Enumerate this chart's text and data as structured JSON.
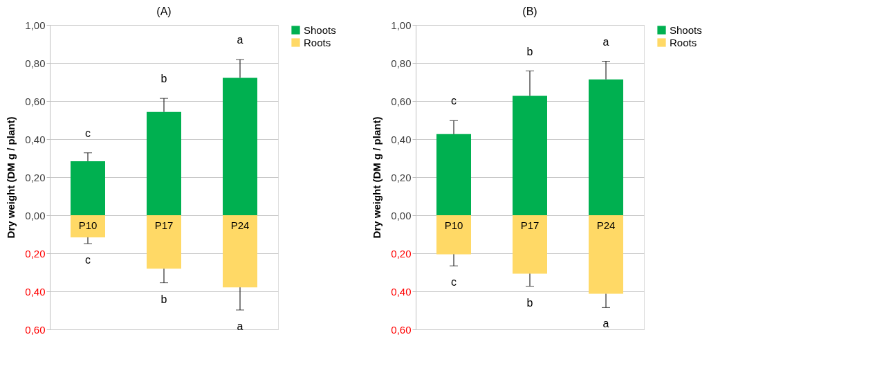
{
  "chart_data": [
    {
      "type": "bar",
      "title": "(A)",
      "ylabel": "Dry weight (DM g / plant)",
      "categories": [
        "P10",
        "P17",
        "P24"
      ],
      "stacked": true,
      "series": [
        {
          "name": "Shoots",
          "color": "#00b050",
          "values": [
            0.284,
            0.543,
            0.722
          ],
          "errors": [
            [
              0.284,
              0.328
            ],
            [
              0.543,
              0.614
            ],
            [
              0.722,
              0.818
            ]
          ]
        },
        {
          "name": "Roots",
          "color": "#ffd966",
          "values": [
            -0.116,
            -0.281,
            -0.379
          ],
          "errors": [
            [
              -0.149,
              -0.116
            ],
            [
              -0.355,
              -0.281
            ],
            [
              -0.498,
              -0.379
            ]
          ]
        }
      ],
      "ylim": [
        -0.6,
        1.0
      ],
      "yticks": [
        {
          "value": -0.6,
          "label": "0,60"
        },
        {
          "value": -0.4,
          "label": "0,40"
        },
        {
          "value": -0.2,
          "label": "0,20"
        },
        {
          "value": 0,
          "label": "0,00"
        },
        {
          "value": 0.2,
          "label": "0,20"
        },
        {
          "value": 0.4,
          "label": "0,40"
        },
        {
          "value": 0.6,
          "label": "0,60"
        },
        {
          "value": 0.8,
          "label": "0,80"
        },
        {
          "value": 1.0,
          "label": "1,00"
        }
      ],
      "grid": "y",
      "legend": "right",
      "annotations": [
        "c",
        "b",
        "a",
        "c",
        "b",
        "a"
      ]
    },
    {
      "type": "bar",
      "title": "(B)",
      "ylabel": "Dry weight (DM g / plant)",
      "categories": [
        "P10",
        "P17",
        "P24"
      ],
      "stacked": true,
      "series": [
        {
          "name": "Shoots",
          "color": "#00b050",
          "values": [
            0.426,
            0.627,
            0.714
          ],
          "errors": [
            [
              0.426,
              0.497
            ],
            [
              0.627,
              0.758
            ],
            [
              0.714,
              0.809
            ]
          ]
        },
        {
          "name": "Roots",
          "color": "#ffd966",
          "values": [
            -0.205,
            -0.307,
            -0.413
          ],
          "errors": [
            [
              -0.266,
              -0.205
            ],
            [
              -0.373,
              -0.307
            ],
            [
              -0.485,
              -0.413
            ]
          ]
        }
      ],
      "ylim": [
        -0.6,
        1.0
      ],
      "yticks": [
        {
          "value": -0.6,
          "label": "0,60"
        },
        {
          "value": -0.4,
          "label": "0,40"
        },
        {
          "value": -0.2,
          "label": "0,20"
        },
        {
          "value": 0,
          "label": "0,00"
        },
        {
          "value": 0.2,
          "label": "0,20"
        },
        {
          "value": 0.4,
          "label": "0,40"
        },
        {
          "value": 0.6,
          "label": "0,60"
        },
        {
          "value": 0.8,
          "label": "0,80"
        },
        {
          "value": 1.0,
          "label": "1,00"
        }
      ],
      "grid": "y",
      "legend": "right",
      "annotations": [
        "c",
        "b",
        "a",
        "c",
        "b",
        "a"
      ]
    }
  ]
}
